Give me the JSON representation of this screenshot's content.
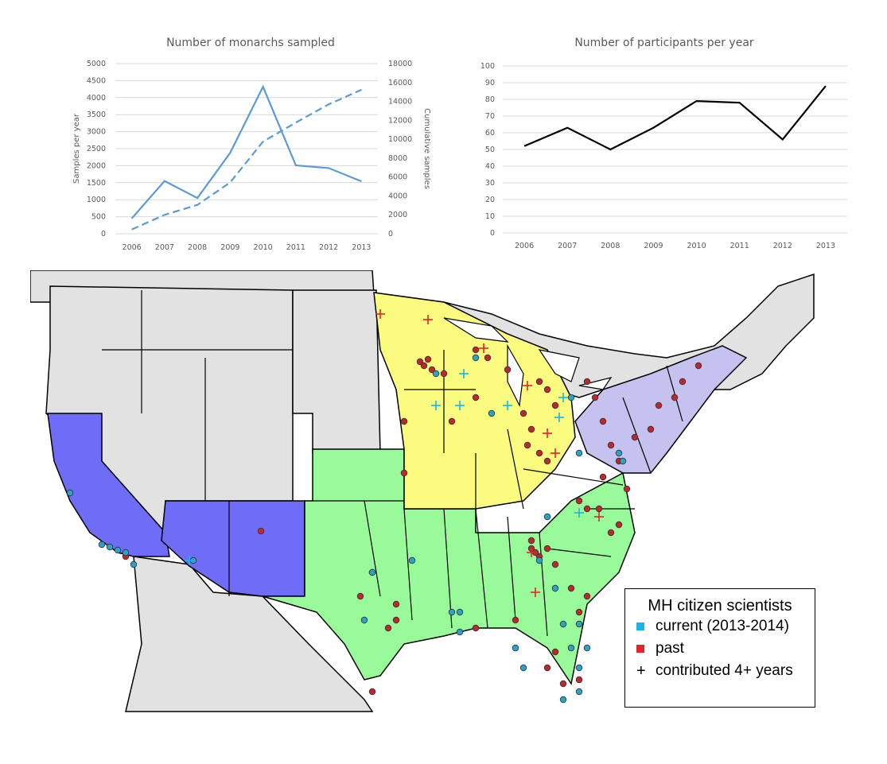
{
  "chart_data": [
    {
      "type": "line",
      "title": "Number of monarchs sampled",
      "categories": [
        "2006",
        "2007",
        "2008",
        "2009",
        "2010",
        "2011",
        "2012",
        "2013"
      ],
      "ylabel": "Samples per year",
      "y2label": "Cumulative samples",
      "ylim": [
        0,
        5000
      ],
      "y2lim": [
        0,
        18000
      ],
      "y_ticks": [
        "0",
        "500",
        "1000",
        "1500",
        "2000",
        "2500",
        "3000",
        "3500",
        "4000",
        "4500",
        "5000"
      ],
      "y2_ticks": [
        "0",
        "2000",
        "4000",
        "6000",
        "8000",
        "10000",
        "12000",
        "14000",
        "16000",
        "18000"
      ],
      "grid": true,
      "series": [
        {
          "values": [
            450,
            1550,
            1050,
            2380,
            4320,
            2010,
            1930,
            1540
          ],
          "axis": "left",
          "style": "solid",
          "color": "#5b9bd5"
        },
        {
          "values": [
            450,
            2000,
            3050,
            5430,
            9750,
            11760,
            13690,
            15230
          ],
          "axis": "right",
          "style": "dashed",
          "color": "#5b9bd5"
        }
      ]
    },
    {
      "type": "line",
      "title": "Number of participants per year",
      "categories": [
        "2006",
        "2007",
        "2008",
        "2009",
        "2010",
        "2011",
        "2012",
        "2013"
      ],
      "ylim": [
        0,
        100
      ],
      "y_ticks": [
        "0",
        "10",
        "20",
        "30",
        "40",
        "50",
        "60",
        "70",
        "80",
        "90",
        "100"
      ],
      "grid": true,
      "series": [
        {
          "values": [
            52,
            63,
            50,
            63,
            79,
            78,
            56,
            88
          ],
          "color": "#000000"
        }
      ]
    }
  ],
  "map": {
    "legend": {
      "title": "MH citizen scientists",
      "items": [
        {
          "label": "current (2013-2014)",
          "marker": "square",
          "color": "#19b5e6"
        },
        {
          "label": "past",
          "marker": "square",
          "color": "#e0262a"
        },
        {
          "label": "contributed 4+ years",
          "marker": "plus",
          "color": "#000000"
        }
      ]
    },
    "region_colors": {
      "west": "#6f6cf7",
      "plains_south": "#98fa98",
      "midwest": "#fbfb80",
      "northeast": "#c5c2ef",
      "other": "#e2e2e2",
      "past_marker": "#c0262d",
      "current_marker": "#2ba3c9"
    }
  }
}
